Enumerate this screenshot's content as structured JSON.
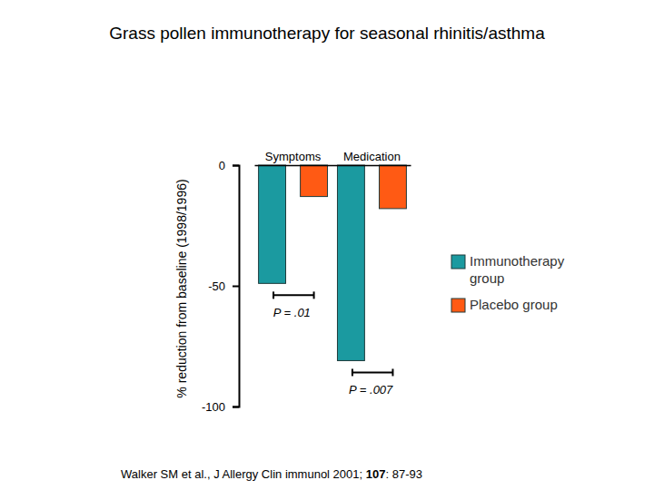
{
  "chart_data": {
    "type": "bar",
    "title": "Grass pollen immunotherapy for seasonal rhinitis/asthma",
    "y_label": "% reduction from baseline (1998/1996)",
    "categories": [
      "Symptoms",
      "Medication"
    ],
    "series": [
      {
        "name": "Immunotherapy group",
        "color": "#1b9aa0",
        "values": [
          -49,
          -81
        ]
      },
      {
        "name": "Placebo group",
        "color": "#ff5a14",
        "values": [
          -13,
          -18
        ]
      }
    ],
    "ylim": [
      -100,
      0
    ],
    "yticks": [
      -100,
      -50,
      0
    ],
    "annotations": [
      "P = .01",
      "P = .007"
    ],
    "source": [
      "Walker SM et al., J Allergy Clin immunol 2001; ",
      "107",
      ": 87-93"
    ],
    "legend": "right"
  }
}
